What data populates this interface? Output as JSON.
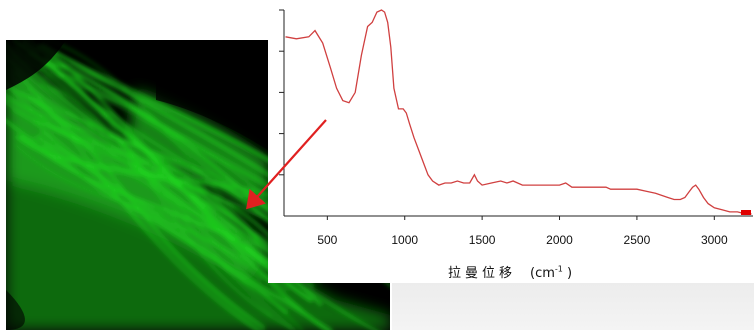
{
  "colors": {
    "spectrum": "#d04040",
    "arrow": "#e02020",
    "fluorescence": "#1fd41f"
  },
  "chart_data": {
    "type": "line",
    "title": "",
    "xlabel": "拉曼位移",
    "xlabel_unit_base": "(cm",
    "xlabel_unit_exp": "-1",
    "xlabel_unit_close": ")",
    "ylabel": "",
    "xlim": [
      220,
      3250
    ],
    "ylim": [
      0,
      1
    ],
    "xticks": [
      500,
      1000,
      1500,
      2000,
      2500,
      3000
    ],
    "yticks_labeled": false,
    "grid": false,
    "series": [
      {
        "x": [
          230,
          300,
          380,
          420,
          470,
          520,
          560,
          600,
          640,
          680,
          720,
          760,
          790,
          820,
          850,
          870,
          890,
          910,
          930,
          960,
          990,
          1010,
          1030,
          1060,
          1090,
          1120,
          1150,
          1180,
          1220,
          1260,
          1300,
          1340,
          1380,
          1420,
          1450,
          1470,
          1500,
          1560,
          1620,
          1660,
          1700,
          1760,
          1800,
          1850,
          1900,
          1950,
          2000,
          2040,
          2080,
          2150,
          2200,
          2300,
          2330,
          2400,
          2500,
          2560,
          2620,
          2660,
          2700,
          2740,
          2780,
          2810,
          2840,
          2860,
          2880,
          2900,
          2930,
          2960,
          3000,
          3050,
          3100,
          3150,
          3200,
          3240
        ],
        "y": [
          0.87,
          0.86,
          0.87,
          0.9,
          0.84,
          0.72,
          0.62,
          0.56,
          0.55,
          0.6,
          0.78,
          0.92,
          0.94,
          0.99,
          1.0,
          0.99,
          0.94,
          0.82,
          0.62,
          0.52,
          0.52,
          0.5,
          0.45,
          0.38,
          0.32,
          0.26,
          0.2,
          0.17,
          0.15,
          0.16,
          0.16,
          0.17,
          0.16,
          0.16,
          0.2,
          0.17,
          0.15,
          0.16,
          0.17,
          0.16,
          0.17,
          0.15,
          0.15,
          0.15,
          0.15,
          0.15,
          0.15,
          0.16,
          0.14,
          0.14,
          0.14,
          0.14,
          0.13,
          0.13,
          0.13,
          0.12,
          0.11,
          0.1,
          0.09,
          0.08,
          0.08,
          0.09,
          0.12,
          0.14,
          0.15,
          0.13,
          0.09,
          0.06,
          0.04,
          0.03,
          0.02,
          0.02,
          0.01,
          0.01
        ]
      }
    ]
  }
}
